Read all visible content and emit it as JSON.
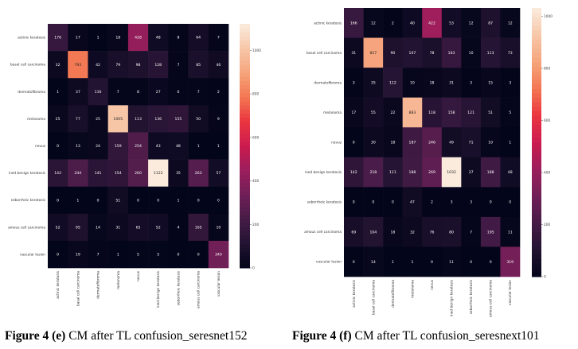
{
  "captions": [
    {
      "fig": "Figure 4",
      "letter": "(e)",
      "text": "CM after TL confusion_seresnet152"
    },
    {
      "fig": "Figure 4",
      "letter": "(f)",
      "text": "CM after TL confusion_seresnext101"
    }
  ],
  "chart_data": [
    {
      "type": "heatmap",
      "title": "CM after TL confusion_seresnet152",
      "row_labels": [
        "actinic keratosis",
        "basal cell carcinoma",
        "dermatofibroma",
        "melanoma",
        "nevus",
        "ined benign keratosis",
        "seborrheic keratosis",
        "amous cell carcinoma",
        "vascular lesion"
      ],
      "col_labels": [
        "actinic keratosis",
        "basal cell carcinoma",
        "dermatofibroma",
        "melanoma",
        "nevus",
        "ined benign keratosis",
        "seborrheic keratosis",
        "amous cell carcinoma",
        "vascular lesion"
      ],
      "values": [
        [
          176,
          17,
          1,
          18,
          428,
          48,
          8,
          64,
          7
        ],
        [
          32,
          793,
          42,
          79,
          98,
          128,
          7,
          85,
          46
        ],
        [
          1,
          37,
          116,
          7,
          8,
          27,
          6,
          7,
          2
        ],
        [
          25,
          77,
          25,
          1005,
          113,
          136,
          155,
          50,
          9
        ],
        [
          0,
          13,
          24,
          159,
          254,
          43,
          48,
          1,
          1
        ],
        [
          142,
          244,
          141,
          154,
          260,
          1122,
          35,
          263,
          57
        ],
        [
          0,
          1,
          0,
          51,
          0,
          0,
          1,
          0,
          0
        ],
        [
          52,
          95,
          14,
          31,
          65,
          52,
          4,
          165,
          10
        ],
        [
          0,
          19,
          7,
          1,
          5,
          5,
          0,
          0,
          340
        ]
      ],
      "colorbar_ticks": [
        0,
        200,
        400,
        600,
        800,
        1000
      ],
      "vmin": 0,
      "vmax": 1122
    },
    {
      "type": "heatmap",
      "title": "CM after TL confusion_seresnext101",
      "row_labels": [
        "actinic keratosis",
        "basal cell carcinoma",
        "dermatofibroma",
        "melanoma",
        "nevus",
        "ined benign keratosis",
        "seborrheic keratosis",
        "amous cell carcinoma",
        "vascular lesion"
      ],
      "col_labels": [
        "actinic keratosis",
        "basal cell carcinoma",
        "dermatofibroma",
        "melanoma",
        "nevus",
        "ined benign keratosis",
        "seborrheic keratosis",
        "amous cell carcinoma",
        "vascular lesion"
      ],
      "values": [
        [
          166,
          12,
          2,
          40,
          422,
          53,
          12,
          87,
          12
        ],
        [
          31,
          827,
          90,
          107,
          78,
          163,
          10,
          113,
          73
        ],
        [
          3,
          35,
          112,
          10,
          18,
          31,
          3,
          15,
          3
        ],
        [
          17,
          55,
          22,
          883,
          118,
          158,
          121,
          51,
          5
        ],
        [
          0,
          30,
          18,
          187,
          246,
          49,
          71,
          10,
          1
        ],
        [
          142,
          218,
          111,
          188,
          269,
          1032,
          37,
          188,
          48
        ],
        [
          0,
          0,
          0,
          47,
          2,
          3,
          3,
          0,
          0
        ],
        [
          69,
          104,
          18,
          32,
          76,
          80,
          7,
          195,
          11
        ],
        [
          0,
          14,
          1,
          1,
          0,
          11,
          0,
          0,
          319
        ]
      ],
      "colorbar_ticks": [
        0,
        200,
        400,
        600,
        800,
        1000
      ],
      "vmin": 0,
      "vmax": 1032
    }
  ]
}
